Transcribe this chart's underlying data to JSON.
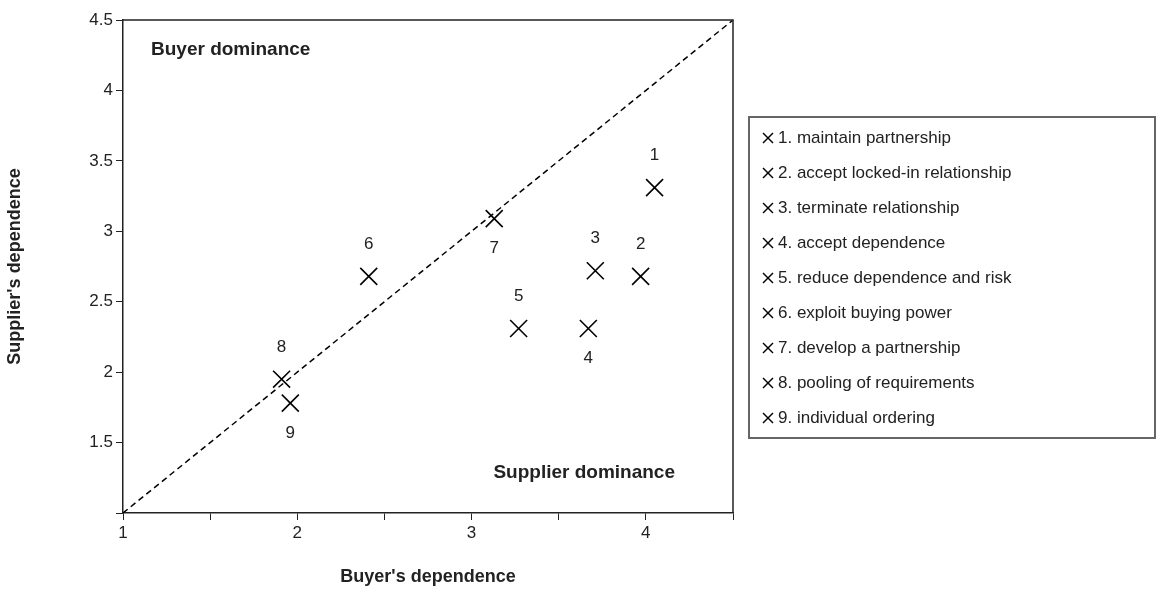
{
  "chart_data": {
    "type": "scatter",
    "xlabel": "Buyer's dependence",
    "ylabel": "Supplier's dependence",
    "xlim": [
      1,
      4.5
    ],
    "ylim": [
      1,
      4.5
    ],
    "xticks": [
      1,
      {
        "value": 1.5,
        "label": null
      },
      2,
      {
        "value": 2.5,
        "label": null
      },
      3,
      {
        "value": 3.5,
        "label": null
      },
      4,
      {
        "value": 4.5,
        "label": null
      }
    ],
    "yticks": [
      {
        "value": 1,
        "label": null
      },
      1.5,
      2,
      2.5,
      3,
      3.5,
      4,
      4.5
    ],
    "grid": false,
    "legend": "right",
    "marker": "cross",
    "series": [
      {
        "name": "1. maintain partnership",
        "color": "#000000",
        "x": [
          4.05
        ],
        "values": [
          3.31
        ]
      },
      {
        "name": "2. accept locked-in relationship",
        "color": "#000000",
        "x": [
          3.97
        ],
        "values": [
          2.68
        ]
      },
      {
        "name": "3. terminate relationship",
        "color": "#000000",
        "x": [
          3.71
        ],
        "values": [
          2.72
        ]
      },
      {
        "name": "4. accept dependence",
        "color": "#000000",
        "x": [
          3.67
        ],
        "values": [
          2.31
        ]
      },
      {
        "name": "5. reduce dependence and risk",
        "color": "#000000",
        "x": [
          3.27
        ],
        "values": [
          2.31
        ]
      },
      {
        "name": "6. exploit buying power",
        "color": "#000000",
        "x": [
          2.41
        ],
        "values": [
          2.68
        ]
      },
      {
        "name": "7. develop a partnership",
        "color": "#000000",
        "x": [
          3.13
        ],
        "values": [
          3.09
        ]
      },
      {
        "name": "8. pooling of requirements",
        "color": "#000000",
        "x": [
          1.91
        ],
        "values": [
          1.95
        ]
      },
      {
        "name": "9. individual ordering",
        "color": "#000000",
        "x": [
          1.96
        ],
        "values": [
          1.78
        ]
      },
      {
        "type": "line",
        "color": "#000000",
        "x": [
          1,
          4.5
        ],
        "values": [
          1,
          4.5
        ],
        "marker": "none",
        "line_style": "dashed"
      }
    ],
    "annotations": [
      "Buyer dominance",
      "Supplier dominance",
      {
        "text": "1",
        "x": 4.05,
        "y": 3.31
      },
      {
        "text": "2",
        "x": 3.97,
        "y": 2.68
      },
      {
        "text": "3",
        "x": 3.71,
        "y": 2.72
      },
      {
        "text": "4",
        "x": 3.67,
        "y": 2.31
      },
      {
        "text": "5",
        "x": 3.27,
        "y": 2.31
      },
      {
        "text": "6",
        "x": 2.41,
        "y": 2.68
      },
      {
        "text": "7",
        "x": 3.13,
        "y": 3.09
      },
      {
        "text": "8",
        "x": 1.91,
        "y": 1.95
      },
      {
        "text": "9",
        "x": 1.96,
        "y": 1.78
      }
    ]
  }
}
